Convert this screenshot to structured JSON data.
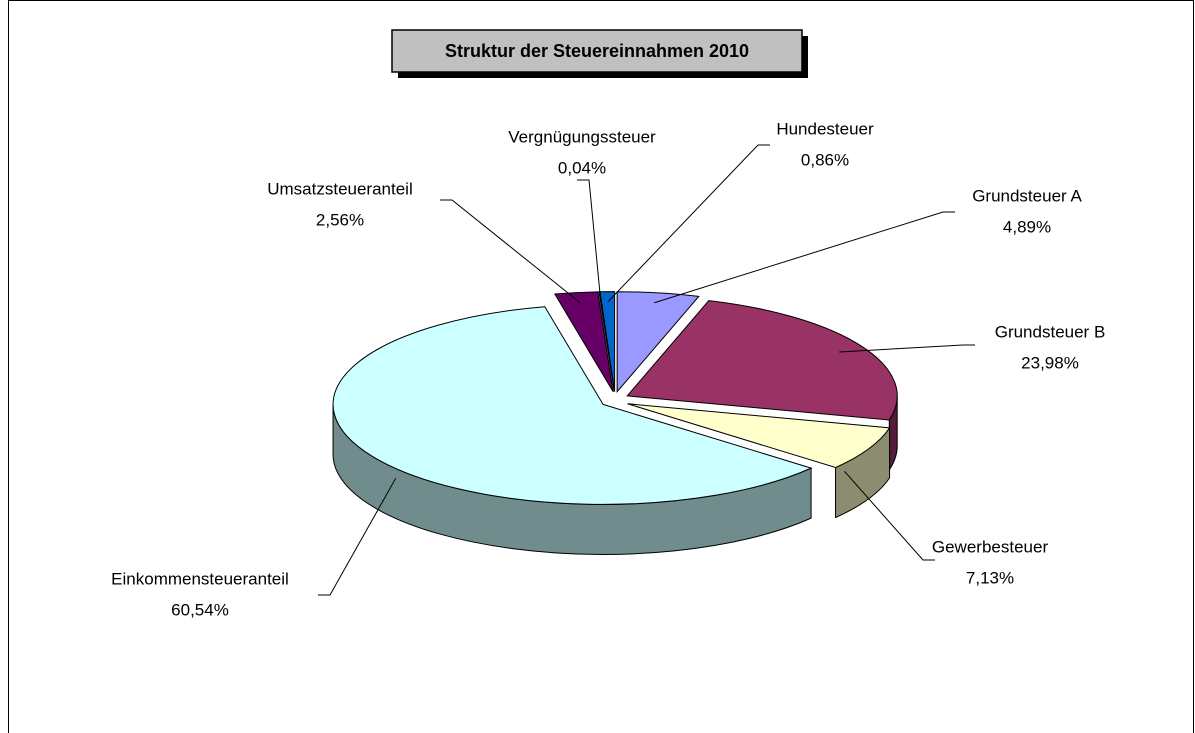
{
  "chart_data": {
    "type": "pie3d",
    "title": "Struktur der Steuereinnahmen 2010",
    "categories": [
      "Grundsteuer A",
      "Grundsteuer B",
      "Gewerbesteuer",
      "Einkommensteueranteil",
      "Umsatzsteueranteil",
      "Vergnügungssteuer",
      "Hundesteuer"
    ],
    "values": [
      4.89,
      23.98,
      7.13,
      60.54,
      2.56,
      0.04,
      0.86
    ],
    "value_labels": [
      "4,89%",
      "23,98%",
      "7,13%",
      "60,54%",
      "2,56%",
      "0,04%",
      "0,86%"
    ],
    "colors": [
      "#9999ff",
      "#993366",
      "#ffffcc",
      "#ccffff",
      "#660066",
      "#ff8080",
      "#0066cc"
    ]
  }
}
